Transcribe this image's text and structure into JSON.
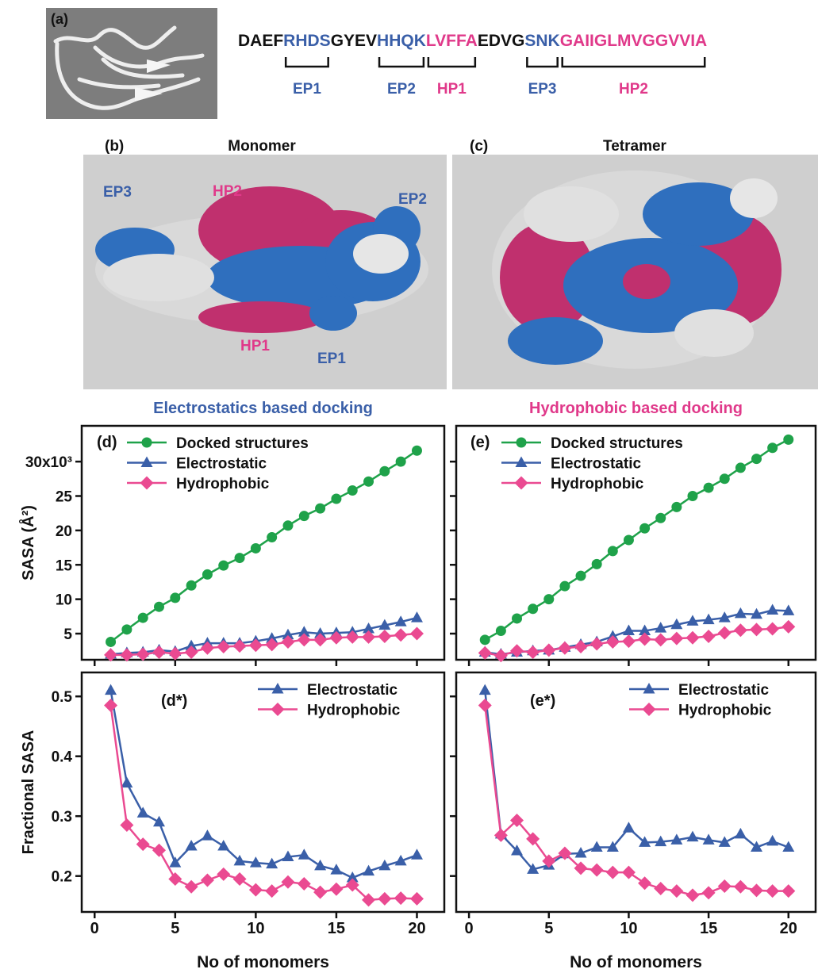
{
  "sequence": [
    {
      "text": "DAEF",
      "color": "#111111"
    },
    {
      "text": "RHDS",
      "color": "#3a5fa8",
      "region": "EP1"
    },
    {
      "text": "GYEV",
      "color": "#111111"
    },
    {
      "text": "HHQK",
      "color": "#3a5fa8",
      "region": "EP2"
    },
    {
      "text": "LVFFA",
      "color": "#e0398a",
      "region": "HP1"
    },
    {
      "text": "EDVG",
      "color": "#111111"
    },
    {
      "text": "SNK",
      "color": "#3a5fa8",
      "region": "EP3"
    },
    {
      "text": "GAIIGLMVGGVVIA",
      "color": "#e0398a",
      "region": "HP2"
    }
  ],
  "panels": {
    "a": {
      "label": "(a)"
    },
    "b": {
      "label": "(b)",
      "title": "Monomer",
      "annotations": [
        {
          "text": "EP3",
          "color": "#3a5fa8"
        },
        {
          "text": "HP2",
          "color": "#e0398a"
        },
        {
          "text": "EP2",
          "color": "#3a5fa8"
        },
        {
          "text": "HP1",
          "color": "#e0398a"
        },
        {
          "text": "EP1",
          "color": "#3a5fa8"
        }
      ]
    },
    "c": {
      "label": "(c)",
      "title": "Tetramer"
    }
  },
  "chart_data": [
    {
      "type": "line",
      "title": "Electrostatics based docking",
      "title_color": "#3a5fa8",
      "panel_label": "(d)",
      "ylabel": "SASA (Å²)",
      "legend": "upper left",
      "show_xtick_labels": false,
      "show_ytick_labels": true,
      "x": [
        1,
        2,
        3,
        4,
        5,
        6,
        7,
        8,
        9,
        10,
        11,
        12,
        13,
        14,
        15,
        16,
        17,
        18,
        19,
        20
      ],
      "xlim": [
        -0.8,
        21.7
      ],
      "xticks": [
        0,
        5,
        10,
        15,
        20
      ],
      "ylim": [
        1.2,
        35.2
      ],
      "yticks": [
        5,
        10,
        15,
        20,
        25,
        {
          "value": 30,
          "label": "30x10³"
        }
      ],
      "series": [
        {
          "name": "Docked structures",
          "color": "#1fa24a",
          "marker": "circle",
          "values": [
            3.8,
            5.6,
            7.3,
            8.9,
            10.2,
            12.0,
            13.6,
            14.9,
            16.0,
            17.4,
            19.0,
            20.7,
            22.1,
            23.2,
            24.6,
            25.8,
            27.1,
            28.6,
            30.0,
            31.6
          ]
        },
        {
          "name": "Electrostatic",
          "color": "#3a5fa8",
          "marker": "triangle",
          "values": [
            2.0,
            2.2,
            2.3,
            2.6,
            2.4,
            3.2,
            3.6,
            3.6,
            3.6,
            3.9,
            4.3,
            4.8,
            5.2,
            5.0,
            5.1,
            5.2,
            5.7,
            6.2,
            6.7,
            7.3
          ]
        },
        {
          "name": "Hydrophobic",
          "color": "#ea4a91",
          "marker": "diamond",
          "values": [
            1.9,
            1.9,
            2.0,
            2.3,
            2.1,
            2.3,
            2.9,
            3.1,
            3.2,
            3.3,
            3.4,
            3.8,
            4.1,
            4.1,
            4.4,
            4.5,
            4.5,
            4.6,
            4.8,
            5.0
          ]
        }
      ]
    },
    {
      "type": "line",
      "title": "Hydrophobic based docking",
      "title_color": "#e0398a",
      "panel_label": "(e)",
      "legend": "upper left",
      "show_xtick_labels": false,
      "show_ytick_labels": false,
      "x": [
        1,
        2,
        3,
        4,
        5,
        6,
        7,
        8,
        9,
        10,
        11,
        12,
        13,
        14,
        15,
        16,
        17,
        18,
        19,
        20
      ],
      "xlim": [
        -0.8,
        21.7
      ],
      "xticks": [
        0,
        5,
        10,
        15,
        20
      ],
      "ylim": [
        1.2,
        35.2
      ],
      "yticks": [
        5,
        10,
        15,
        20,
        25,
        30
      ],
      "series": [
        {
          "name": "Docked structures",
          "color": "#1fa24a",
          "marker": "circle",
          "values": [
            4.1,
            5.4,
            7.2,
            8.6,
            10.0,
            11.9,
            13.4,
            15.1,
            17.0,
            18.6,
            20.3,
            21.8,
            23.4,
            25.0,
            26.2,
            27.5,
            29.1,
            30.4,
            32.0,
            33.2
          ]
        },
        {
          "name": "Electrostatic",
          "color": "#3a5fa8",
          "marker": "triangle",
          "values": [
            2.3,
            2.0,
            2.3,
            2.5,
            2.6,
            3.0,
            3.4,
            3.8,
            4.6,
            5.4,
            5.4,
            5.8,
            6.3,
            6.8,
            7.0,
            7.3,
            7.9,
            7.8,
            8.4,
            8.3
          ]
        },
        {
          "name": "Hydrophobic",
          "color": "#ea4a91",
          "marker": "diamond",
          "values": [
            2.2,
            1.8,
            2.5,
            2.3,
            2.6,
            2.9,
            3.1,
            3.5,
            3.8,
            3.9,
            4.2,
            4.1,
            4.3,
            4.4,
            4.6,
            5.1,
            5.5,
            5.6,
            5.7,
            6.0
          ]
        }
      ]
    },
    {
      "type": "line",
      "panel_label": "(d*)",
      "ylabel": "Fractional SASA",
      "xlabel": "No of monomers",
      "legend": "upper right",
      "show_xtick_labels": true,
      "show_ytick_labels": true,
      "x": [
        1,
        2,
        3,
        4,
        5,
        6,
        7,
        8,
        9,
        10,
        11,
        12,
        13,
        14,
        15,
        16,
        17,
        18,
        19,
        20
      ],
      "xlim": [
        -0.8,
        21.7
      ],
      "xticks": [
        0,
        5,
        10,
        15,
        20
      ],
      "ylim": [
        0.14,
        0.54
      ],
      "yticks": [
        0.2,
        0.3,
        0.4,
        0.5
      ],
      "series": [
        {
          "name": "Electrostatic",
          "color": "#3a5fa8",
          "marker": "triangle",
          "values": [
            0.51,
            0.355,
            0.305,
            0.29,
            0.222,
            0.25,
            0.267,
            0.25,
            0.225,
            0.222,
            0.22,
            0.232,
            0.235,
            0.217,
            0.21,
            0.197,
            0.208,
            0.217,
            0.225,
            0.235
          ]
        },
        {
          "name": "Hydrophobic",
          "color": "#ea4a91",
          "marker": "diamond",
          "values": [
            0.485,
            0.285,
            0.253,
            0.243,
            0.195,
            0.182,
            0.193,
            0.203,
            0.195,
            0.177,
            0.175,
            0.19,
            0.187,
            0.173,
            0.178,
            0.185,
            0.16,
            0.162,
            0.163,
            0.162
          ]
        }
      ]
    },
    {
      "type": "line",
      "panel_label": "(e*)",
      "xlabel": "No of monomers",
      "legend": "upper right",
      "show_xtick_labels": true,
      "show_ytick_labels": false,
      "x": [
        1,
        2,
        3,
        4,
        5,
        6,
        7,
        8,
        9,
        10,
        11,
        12,
        13,
        14,
        15,
        16,
        17,
        18,
        19,
        20
      ],
      "xlim": [
        -0.8,
        21.7
      ],
      "xticks": [
        0,
        5,
        10,
        15,
        20
      ],
      "ylim": [
        0.14,
        0.54
      ],
      "yticks": [
        0.2,
        0.3,
        0.4,
        0.5
      ],
      "series": [
        {
          "name": "Electrostatic",
          "color": "#3a5fa8",
          "marker": "triangle",
          "values": [
            0.51,
            0.27,
            0.242,
            0.211,
            0.218,
            0.237,
            0.238,
            0.248,
            0.248,
            0.28,
            0.256,
            0.257,
            0.26,
            0.265,
            0.26,
            0.256,
            0.27,
            0.248,
            0.258,
            0.248
          ]
        },
        {
          "name": "Hydrophobic",
          "color": "#ea4a91",
          "marker": "diamond",
          "values": [
            0.485,
            0.268,
            0.293,
            0.262,
            0.225,
            0.238,
            0.213,
            0.21,
            0.206,
            0.206,
            0.188,
            0.179,
            0.175,
            0.168,
            0.172,
            0.183,
            0.182,
            0.176,
            0.175,
            0.175
          ]
        }
      ]
    }
  ]
}
